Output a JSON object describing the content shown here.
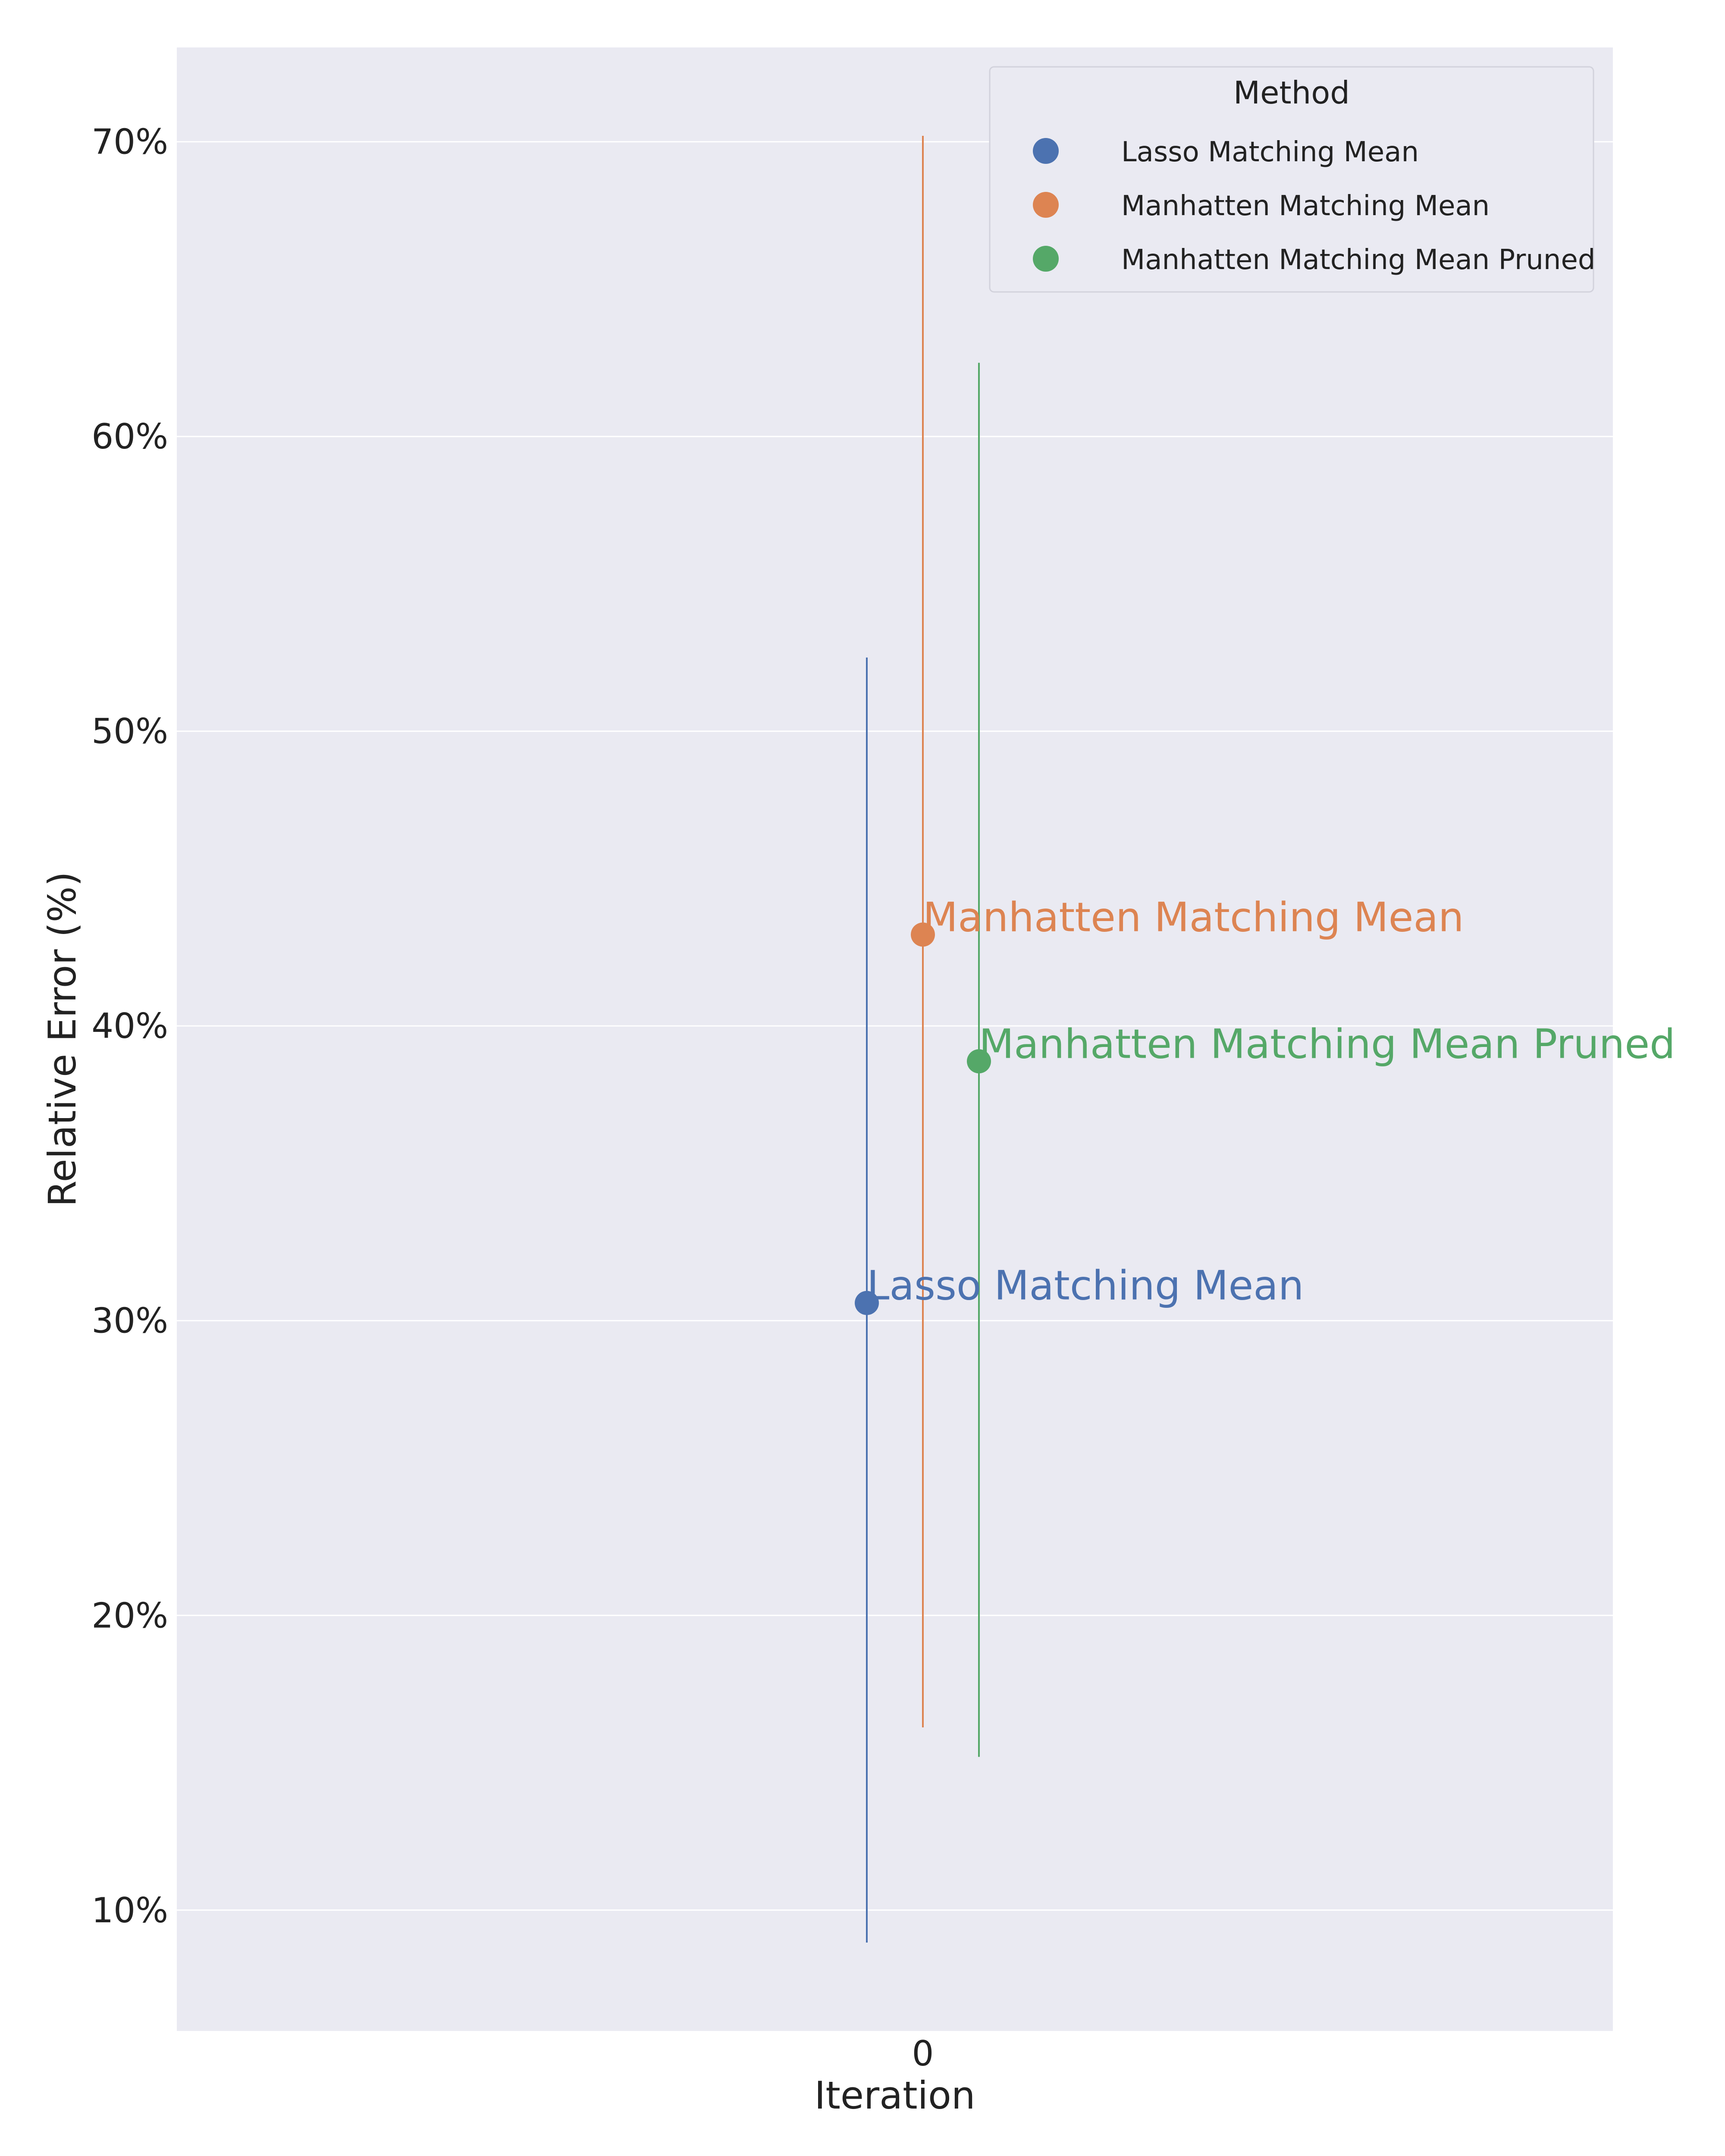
{
  "chart_data": {
    "type": "scatter",
    "title": "",
    "xlabel": "Iteration",
    "ylabel": "Relative Error (%)",
    "x_ticks": [
      "0"
    ],
    "y_ticks": [
      "10%",
      "20%",
      "30%",
      "40%",
      "50%",
      "60%",
      "70%"
    ],
    "ylim": [
      5.9,
      73.2
    ],
    "grid": true,
    "legend": {
      "title": "Method",
      "placement": "top-right",
      "entries": [
        "Lasso Matching Mean",
        "Manhatten Matching Mean",
        "Manhatten Matching Mean Pruned"
      ]
    },
    "series": [
      {
        "name": "Lasso Matching Mean",
        "color": "#4c72b0",
        "x": 0,
        "y": 30.6,
        "err_low": 8.9,
        "err_high": 52.5,
        "label": "Lasso Matching Mean"
      },
      {
        "name": "Manhatten Matching Mean",
        "color": "#dd8452",
        "x": 0,
        "y": 43.1,
        "err_low": 16.2,
        "err_high": 70.2,
        "label": "Manhatten Matching Mean"
      },
      {
        "name": "Manhatten Matching Mean Pruned",
        "color": "#55a868",
        "x": 0,
        "y": 38.8,
        "err_low": 15.2,
        "err_high": 62.5,
        "label": "Manhatten Matching Mean Pruned"
      }
    ]
  }
}
